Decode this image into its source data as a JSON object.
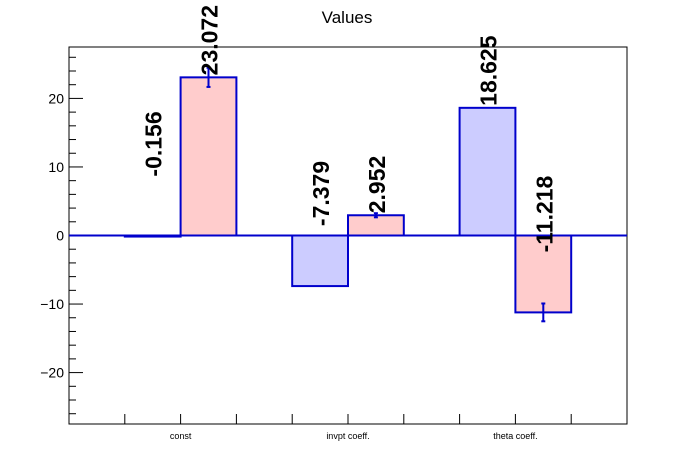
{
  "chart_data": {
    "type": "bar",
    "title": "Values",
    "xlabel": "",
    "ylabel": "",
    "categories": [
      "const",
      "invpt coeff.",
      "theta coeff."
    ],
    "ylim": [
      -27.5,
      27.5
    ],
    "yticks": [
      -20,
      -10,
      0,
      10,
      20
    ],
    "grid": false,
    "series": [
      {
        "values": [
          -0.156,
          -7.379,
          18.625
        ],
        "labels": [
          "-0.156",
          "-7.379",
          "18.625"
        ],
        "errors": [
          0,
          0,
          0
        ],
        "color": "#ccccff"
      },
      {
        "values": [
          23.072,
          2.952,
          -11.218
        ],
        "labels": [
          "23.072",
          "2.952",
          "-11.218"
        ],
        "errors": [
          1.4,
          0.3,
          1.3
        ],
        "color": "#ffcccc"
      }
    ],
    "bar_edge_color": "#0000cc",
    "zero_line_color": "#0000cc"
  }
}
